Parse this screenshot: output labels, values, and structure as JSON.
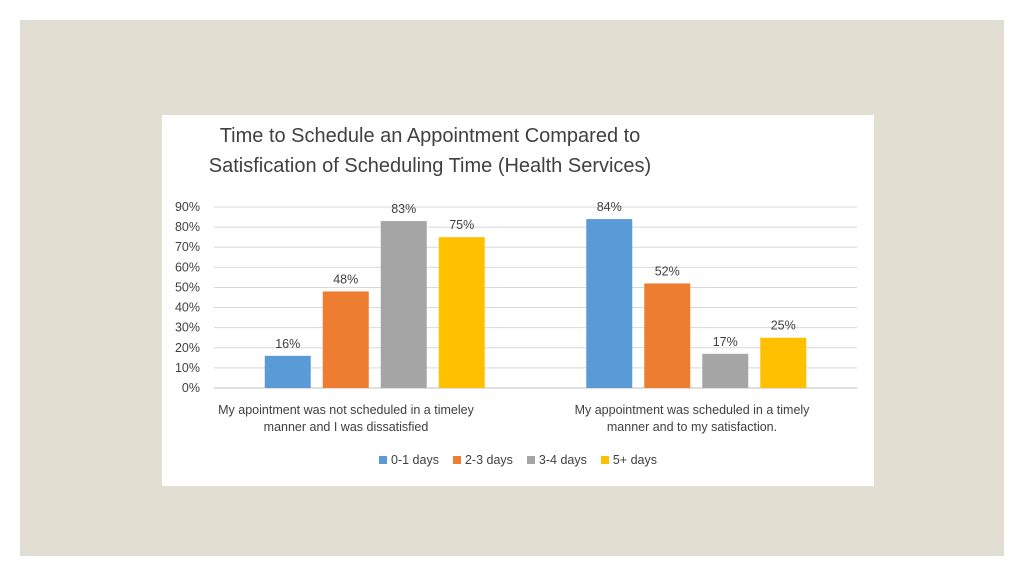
{
  "chart_data": {
    "type": "bar",
    "title": "Time to Schedule an Appointment Compared to Satisfication of Scheduling Time (Health Services)",
    "title_lines": [
      "Time to Schedule an Appointment Compared to",
      "Satisfication of Scheduling Time (Health Services)"
    ],
    "categories": [
      "My apointment was not scheduled in a timeley manner and I was dissatisfied",
      "My appointment was scheduled in a timely manner and to my satisfaction."
    ],
    "category_lines": [
      [
        "My apointment was not scheduled in a timeley",
        "manner and I was dissatisfied"
      ],
      [
        "My appointment was scheduled in a timely",
        "manner and to my satisfaction."
      ]
    ],
    "series": [
      {
        "name": "0-1 days",
        "color": "#5b9bd5",
        "values": [
          16,
          84
        ]
      },
      {
        "name": "2-3 days",
        "color": "#ed7d31",
        "values": [
          48,
          52
        ]
      },
      {
        "name": "3-4 days",
        "color": "#a5a5a5",
        "values": [
          83,
          17
        ]
      },
      {
        "name": "5+ days",
        "color": "#ffc000",
        "values": [
          75,
          25
        ]
      }
    ],
    "data_labels": [
      [
        "16%",
        "84%"
      ],
      [
        "48%",
        "52%"
      ],
      [
        "83%",
        "17%"
      ],
      [
        "75%",
        "25%"
      ]
    ],
    "y_ticks": [
      "0%",
      "10%",
      "20%",
      "30%",
      "40%",
      "50%",
      "60%",
      "70%",
      "80%",
      "90%"
    ],
    "ylim": [
      0,
      90
    ],
    "grid": true,
    "legend_position": "bottom",
    "xlabel": "",
    "ylabel": ""
  },
  "colors": {
    "slide_background": "#e2ded1",
    "card_background": "#ffffff",
    "gridline": "#d9d9d9",
    "text": "#404040"
  }
}
